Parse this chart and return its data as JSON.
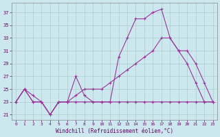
{
  "xlabel": "Windchill (Refroidissement éolien,°C)",
  "bg_color": "#cce8ee",
  "grid_color": "#aacccc",
  "line_color": "#993399",
  "text_color": "#660066",
  "x_ticks": [
    0,
    1,
    2,
    3,
    4,
    5,
    6,
    7,
    8,
    9,
    10,
    11,
    12,
    13,
    14,
    15,
    16,
    17,
    18,
    19,
    20,
    21,
    22,
    23
  ],
  "y_ticks": [
    21,
    23,
    25,
    27,
    29,
    31,
    33,
    35,
    37
  ],
  "ylim": [
    20.2,
    38.5
  ],
  "xlim": [
    -0.5,
    23.5
  ],
  "series": [
    {
      "x": [
        0,
        1,
        2,
        3,
        4,
        5,
        6,
        7,
        8,
        9,
        10,
        11,
        12,
        13,
        14,
        15,
        16,
        17,
        18,
        19,
        20,
        21,
        22,
        23
      ],
      "y": [
        23,
        25,
        23,
        23,
        21,
        23,
        23,
        23,
        23,
        23,
        23,
        23,
        23,
        23,
        23,
        23,
        23,
        23,
        23,
        23,
        23,
        23,
        23,
        23
      ]
    },
    {
      "x": [
        0,
        1,
        2,
        3,
        4,
        5,
        6,
        7,
        8,
        9,
        10,
        11,
        12,
        13,
        14,
        15,
        16,
        17,
        18,
        19,
        20,
        21,
        22,
        23
      ],
      "y": [
        23,
        25,
        24,
        23,
        21,
        23,
        23,
        24,
        25,
        25,
        25,
        26,
        27,
        28,
        29,
        30,
        31,
        33,
        33,
        31,
        31,
        29,
        26,
        23
      ]
    },
    {
      "x": [
        0,
        1,
        2,
        3,
        4,
        5,
        6,
        7,
        8,
        9,
        10,
        11,
        12,
        13,
        14,
        15,
        16,
        17,
        18,
        19,
        20,
        21,
        22,
        23
      ],
      "y": [
        23,
        25,
        23,
        23,
        21,
        23,
        23,
        27,
        24,
        23,
        23,
        23,
        30,
        33,
        36,
        36,
        37,
        37.5,
        33,
        31,
        29,
        26,
        23,
        23
      ]
    }
  ]
}
